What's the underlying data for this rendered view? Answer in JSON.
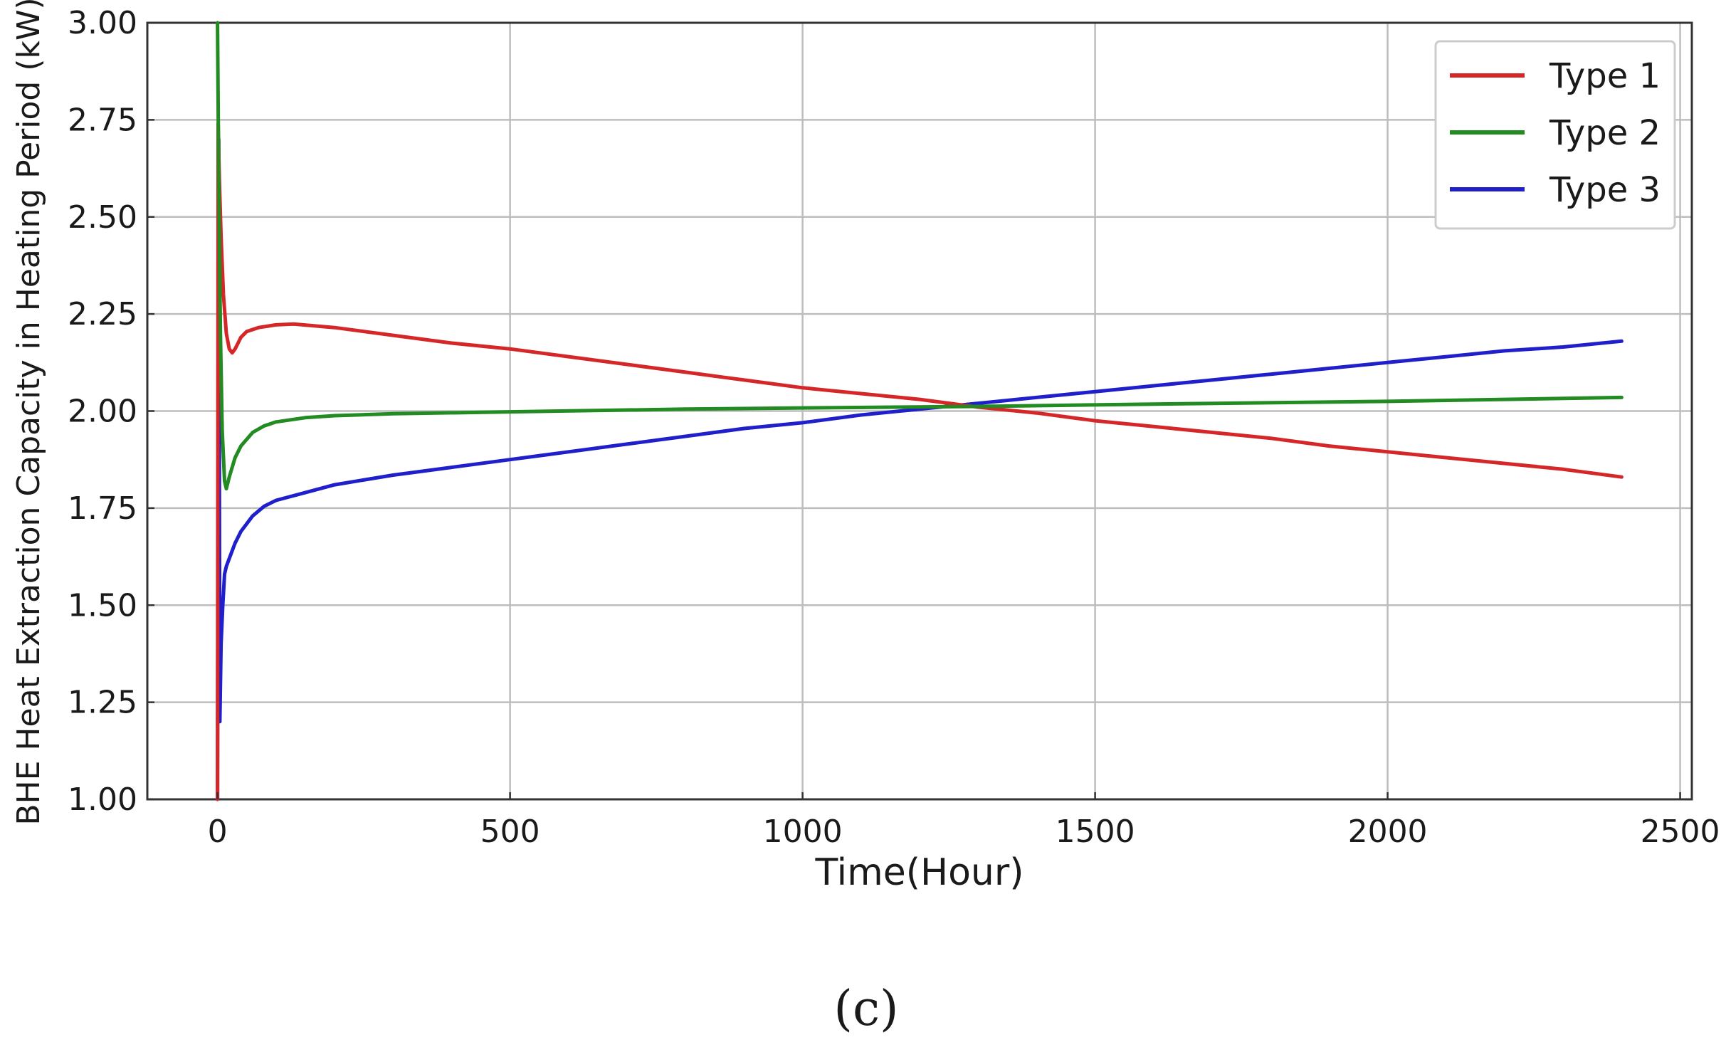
{
  "chart_data": {
    "type": "line",
    "title": "",
    "xlabel": "Time(Hour)",
    "ylabel": "BHE Heat Extraction Capacity in Heating Period (kW)",
    "xlim": [
      -120,
      2520
    ],
    "ylim": [
      1.0,
      3.0
    ],
    "xticks": [
      0,
      500,
      1000,
      1500,
      2000,
      2500
    ],
    "yticks": [
      1.0,
      1.25,
      1.5,
      1.75,
      2.0,
      2.25,
      2.5,
      2.75,
      3.0
    ],
    "xtick_labels": [
      "0",
      "500",
      "1000",
      "1500",
      "2000",
      "2500"
    ],
    "ytick_labels": [
      "1.00",
      "1.25",
      "1.50",
      "1.75",
      "2.00",
      "2.25",
      "2.50",
      "2.75",
      "3.00"
    ],
    "grid": true,
    "legend_position": "top-right",
    "series": [
      {
        "name": "Type 1",
        "color": "#d62728",
        "points": [
          [
            0,
            1.0
          ],
          [
            1,
            2.74
          ],
          [
            3,
            2.6
          ],
          [
            6,
            2.45
          ],
          [
            10,
            2.3
          ],
          [
            15,
            2.2
          ],
          [
            20,
            2.16
          ],
          [
            25,
            2.15
          ],
          [
            30,
            2.16
          ],
          [
            40,
            2.19
          ],
          [
            50,
            2.205
          ],
          [
            70,
            2.215
          ],
          [
            100,
            2.222
          ],
          [
            130,
            2.224
          ],
          [
            200,
            2.215
          ],
          [
            300,
            2.195
          ],
          [
            400,
            2.175
          ],
          [
            500,
            2.16
          ],
          [
            600,
            2.14
          ],
          [
            700,
            2.12
          ],
          [
            800,
            2.1
          ],
          [
            900,
            2.08
          ],
          [
            1000,
            2.06
          ],
          [
            1100,
            2.045
          ],
          [
            1200,
            2.03
          ],
          [
            1300,
            2.01
          ],
          [
            1400,
            1.995
          ],
          [
            1500,
            1.975
          ],
          [
            1600,
            1.96
          ],
          [
            1700,
            1.945
          ],
          [
            1800,
            1.93
          ],
          [
            1900,
            1.91
          ],
          [
            2000,
            1.895
          ],
          [
            2100,
            1.88
          ],
          [
            2200,
            1.865
          ],
          [
            2300,
            1.85
          ],
          [
            2400,
            1.83
          ]
        ]
      },
      {
        "name": "Type 2",
        "color": "#228b22",
        "points": [
          [
            0,
            3.0
          ],
          [
            2,
            2.6
          ],
          [
            5,
            2.2
          ],
          [
            8,
            1.95
          ],
          [
            12,
            1.82
          ],
          [
            15,
            1.8
          ],
          [
            20,
            1.83
          ],
          [
            30,
            1.88
          ],
          [
            40,
            1.91
          ],
          [
            60,
            1.945
          ],
          [
            80,
            1.962
          ],
          [
            100,
            1.972
          ],
          [
            150,
            1.983
          ],
          [
            200,
            1.988
          ],
          [
            300,
            1.993
          ],
          [
            500,
            1.998
          ],
          [
            800,
            2.005
          ],
          [
            1000,
            2.008
          ],
          [
            1300,
            2.012
          ],
          [
            1600,
            2.018
          ],
          [
            2000,
            2.025
          ],
          [
            2400,
            2.035
          ]
        ]
      },
      {
        "name": "Type 3",
        "color": "#1f1fcc",
        "points": [
          [
            0,
            1.0
          ],
          [
            2,
            2.7
          ],
          [
            4,
            1.2
          ],
          [
            6,
            1.4
          ],
          [
            9,
            1.5
          ],
          [
            12,
            1.58
          ],
          [
            15,
            1.6
          ],
          [
            20,
            1.62
          ],
          [
            30,
            1.66
          ],
          [
            40,
            1.69
          ],
          [
            60,
            1.73
          ],
          [
            80,
            1.755
          ],
          [
            100,
            1.77
          ],
          [
            150,
            1.79
          ],
          [
            200,
            1.81
          ],
          [
            300,
            1.835
          ],
          [
            400,
            1.855
          ],
          [
            500,
            1.875
          ],
          [
            600,
            1.895
          ],
          [
            700,
            1.915
          ],
          [
            800,
            1.935
          ],
          [
            900,
            1.955
          ],
          [
            1000,
            1.97
          ],
          [
            1100,
            1.99
          ],
          [
            1200,
            2.005
          ],
          [
            1300,
            2.02
          ],
          [
            1400,
            2.035
          ],
          [
            1500,
            2.05
          ],
          [
            1600,
            2.065
          ],
          [
            1700,
            2.08
          ],
          [
            1800,
            2.095
          ],
          [
            1900,
            2.11
          ],
          [
            2000,
            2.125
          ],
          [
            2100,
            2.14
          ],
          [
            2200,
            2.155
          ],
          [
            2300,
            2.165
          ],
          [
            2400,
            2.18
          ]
        ]
      }
    ]
  },
  "caption": "(c)"
}
